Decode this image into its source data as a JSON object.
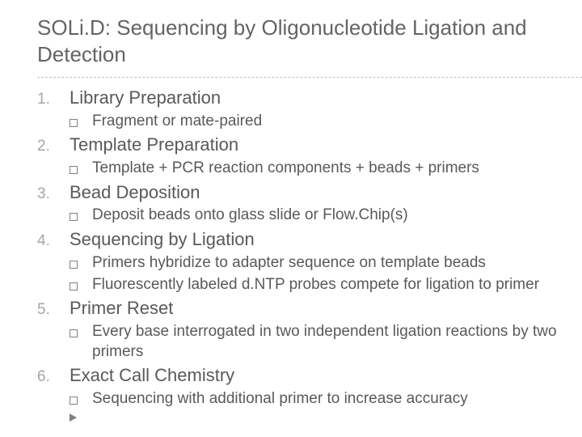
{
  "title": "SOLi.D: Sequencing by Oligonucleotide Ligation and Detection",
  "colors": {
    "title": "#646464",
    "body_text": "#595959",
    "number": "#a6a6a6",
    "box_border": "#808080",
    "divider": "#bfbfbf",
    "background": "#ffffff"
  },
  "fonts": {
    "title_size": 26,
    "heading_size": 22,
    "sub_size": 19,
    "number_size": 19
  },
  "items": [
    {
      "num": "1.",
      "heading": "Library Preparation",
      "subs": [
        "Fragment or mate-paired"
      ]
    },
    {
      "num": "2.",
      "heading": "Template Preparation",
      "subs": [
        "Template + PCR reaction components + beads + primers"
      ]
    },
    {
      "num": "3.",
      "heading": "Bead Deposition",
      "subs": [
        "Deposit beads onto glass slide or Flow.Chip(s)"
      ]
    },
    {
      "num": "4.",
      "heading": "Sequencing by Ligation",
      "subs": [
        "Primers hybridize to adapter sequence on template beads",
        "Fluorescently labeled d.NTP probes compete for ligation to primer"
      ]
    },
    {
      "num": "5.",
      "heading": "Primer Reset",
      "subs": [
        "Every base interrogated in two independent ligation reactions by two primers"
      ]
    },
    {
      "num": "6.",
      "heading": "Exact Call Chemistry",
      "subs": [
        "Sequencing with additional primer to increase accuracy"
      ],
      "trailing_arrow": true
    }
  ]
}
